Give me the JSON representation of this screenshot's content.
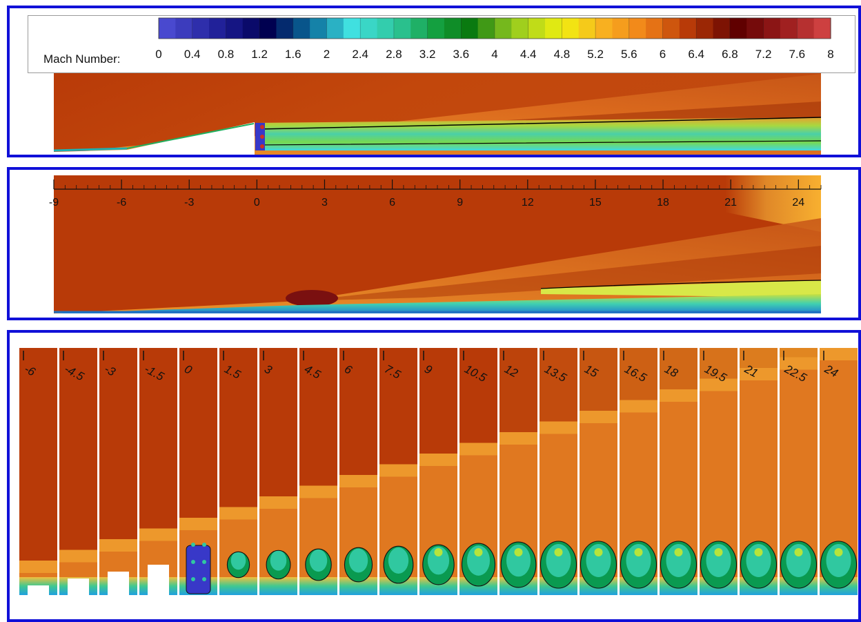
{
  "legend": {
    "title": "Mach Number:",
    "min": 0,
    "max": 8,
    "labels": [
      "0",
      "0.4",
      "0.8",
      "1.2",
      "1.6",
      "2",
      "2.4",
      "2.8",
      "3.2",
      "3.6",
      "4",
      "4.4",
      "4.8",
      "5.2",
      "5.6",
      "6",
      "6.4",
      "6.8",
      "7.2",
      "7.6",
      "8"
    ],
    "color_stops": [
      {
        "v": 0.0,
        "c": "#5050d8"
      },
      {
        "v": 0.8,
        "c": "#1a1a90"
      },
      {
        "v": 1.3,
        "c": "#000050"
      },
      {
        "v": 1.8,
        "c": "#0a6a9a"
      },
      {
        "v": 2.3,
        "c": "#40e0e0"
      },
      {
        "v": 2.8,
        "c": "#30c8a0"
      },
      {
        "v": 3.3,
        "c": "#14a040"
      },
      {
        "v": 3.7,
        "c": "#0a7a10"
      },
      {
        "v": 4.2,
        "c": "#90c820"
      },
      {
        "v": 4.8,
        "c": "#f0f010"
      },
      {
        "v": 5.3,
        "c": "#f8b020"
      },
      {
        "v": 5.8,
        "c": "#f08018"
      },
      {
        "v": 6.3,
        "c": "#b83a08"
      },
      {
        "v": 6.9,
        "c": "#600000"
      },
      {
        "v": 7.5,
        "c": "#a02020"
      },
      {
        "v": 8.0,
        "c": "#d84848"
      }
    ]
  },
  "side_view": {
    "axis_labels": [
      "-9",
      "-6",
      "-3",
      "0",
      "3",
      "6",
      "9",
      "12",
      "15",
      "18",
      "21",
      "24"
    ]
  },
  "cross_sections": {
    "labels": [
      "-6",
      "-4.5",
      "-3",
      "-1.5",
      "0",
      "1.5",
      "3",
      "4.5",
      "6",
      "7.5",
      "9",
      "10.5",
      "12",
      "13.5",
      "15",
      "16.5",
      "18",
      "19.5",
      "21",
      "22.5",
      "24"
    ]
  },
  "colors": {
    "frame": "#1010d8",
    "freestream": "#b83a08"
  }
}
